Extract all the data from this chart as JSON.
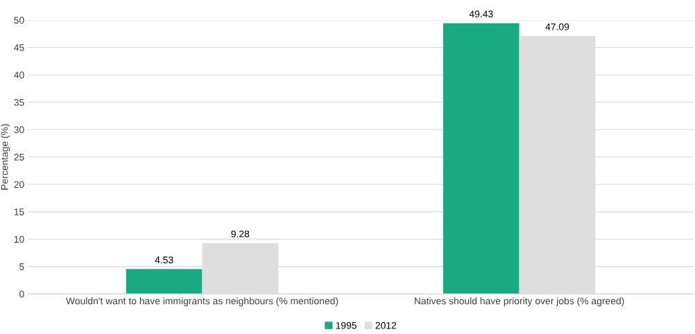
{
  "chart_data": {
    "type": "bar",
    "ylabel": "Percentage (%)",
    "categories": [
      "Wouldn't want to have immigrants as neighbours (% mentioned)",
      "Natives should have priority over jobs (% agreed)"
    ],
    "series": [
      {
        "name": "1995",
        "color": "#1aaa82",
        "values": [
          4.53,
          49.43
        ]
      },
      {
        "name": "2012",
        "color": "#dedede",
        "values": [
          9.28,
          47.09
        ]
      }
    ],
    "ylim": [
      0,
      50
    ],
    "yticks": [
      0,
      5,
      10,
      15,
      20,
      25,
      30,
      35,
      40,
      45,
      50
    ],
    "grid": "y",
    "legend": "bottom",
    "data_labels": true
  }
}
